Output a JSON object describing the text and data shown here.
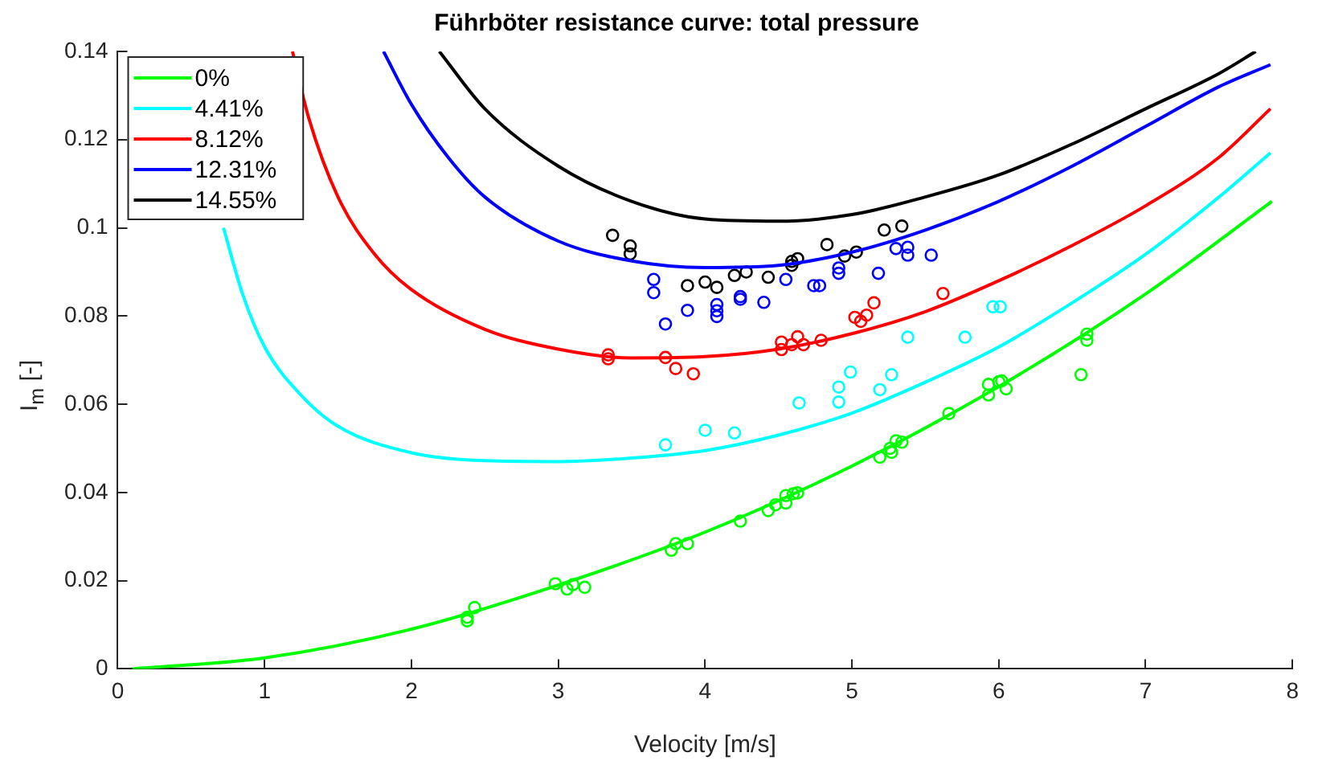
{
  "chart_data": {
    "type": "scatter",
    "title": "Führböter resistance curve: total pressure",
    "xlabel": "Velocity [m/s]",
    "ylabel": "I$_{m}$ [-]",
    "xlim": [
      0,
      8
    ],
    "xticks": [
      0,
      1,
      2,
      3,
      4,
      5,
      6,
      7,
      8
    ],
    "ylim": [
      0,
      0.14
    ],
    "yticks": [
      0,
      0.02,
      0.04,
      0.06,
      0.08,
      {
        "value": 0.1,
        "label": "0.1"
      },
      0.12,
      0.14
    ],
    "grid": false,
    "legend": "top left",
    "series": [
      {
        "name": "0%",
        "type": "line",
        "color": "#00ff00",
        "line_style": "solid",
        "marker": "none",
        "x": [
          0.1,
          1,
          2,
          3,
          4,
          5,
          6,
          7,
          7.86
        ],
        "values": [
          0,
          0.0025,
          0.009,
          0.019,
          0.031,
          0.046,
          0.064,
          0.085,
          0.106
        ]
      },
      {
        "name": "4.41%",
        "type": "line",
        "color": "#00ffff",
        "line_style": "solid",
        "marker": "none",
        "x": [
          0.72,
          0.85,
          1,
          1.25,
          1.5,
          2,
          2.5,
          3,
          3.5,
          4,
          4.5,
          5,
          5.5,
          6,
          6.5,
          7,
          7.5,
          7.85
        ],
        "values": [
          0.1,
          0.085,
          0.073,
          0.062,
          0.055,
          0.049,
          0.0472,
          0.047,
          0.0478,
          0.0495,
          0.053,
          0.058,
          0.065,
          0.073,
          0.083,
          0.094,
          0.107,
          0.117
        ]
      },
      {
        "name": "8.12%",
        "type": "line",
        "color": "#ff0000",
        "line_style": "solid",
        "marker": "none",
        "x": [
          1.19,
          1.3,
          1.5,
          1.75,
          2,
          2.5,
          3,
          3.5,
          4,
          4.5,
          5,
          5.5,
          6,
          6.5,
          7,
          7.5,
          7.85
        ],
        "values": [
          0.14,
          0.125,
          0.107,
          0.094,
          0.086,
          0.077,
          0.0725,
          0.0705,
          0.0708,
          0.0725,
          0.076,
          0.081,
          0.088,
          0.096,
          0.105,
          0.116,
          0.127
        ]
      },
      {
        "name": "12.31%",
        "type": "line",
        "color": "#0000ff",
        "line_style": "solid",
        "marker": "none",
        "x": [
          1.81,
          2,
          2.25,
          2.5,
          3,
          3.5,
          4,
          4.5,
          5,
          5.5,
          6,
          6.5,
          7,
          7.5,
          7.85
        ],
        "values": [
          0.14,
          0.128,
          0.116,
          0.107,
          0.097,
          0.0925,
          0.091,
          0.0915,
          0.0945,
          0.0995,
          0.106,
          0.114,
          0.123,
          0.132,
          0.137
        ]
      },
      {
        "name": "14.55%",
        "type": "line",
        "color": "#000000",
        "line_style": "solid",
        "marker": "none",
        "x": [
          2.19,
          2.5,
          3,
          3.5,
          4,
          4.5,
          5,
          5.5,
          6,
          6.5,
          7,
          7.5,
          7.75
        ],
        "values": [
          0.14,
          0.127,
          0.114,
          0.106,
          0.102,
          0.1015,
          0.103,
          0.107,
          0.112,
          0.119,
          0.127,
          0.135,
          0.14
        ]
      },
      {
        "type": "scatter",
        "color": "#00ff00",
        "marker": "circle",
        "x": [
          2.38,
          2.38,
          2.43,
          2.98,
          3.06,
          3.1,
          3.18,
          3.77,
          3.8,
          3.88,
          4.24,
          4.43,
          4.48,
          4.55,
          4.55,
          4.6,
          4.63,
          5.19,
          5.26,
          5.27,
          5.3,
          5.34,
          5.66,
          5.93,
          5.93,
          6.0,
          6.02,
          6.05,
          6.56,
          6.6,
          6.6
        ],
        "values": [
          0.0117,
          0.0109,
          0.0139,
          0.0193,
          0.0181,
          0.0191,
          0.0185,
          0.0269,
          0.0284,
          0.0284,
          0.0335,
          0.0359,
          0.0372,
          0.0376,
          0.0393,
          0.0397,
          0.0399,
          0.048,
          0.05,
          0.0491,
          0.0517,
          0.0514,
          0.0579,
          0.0645,
          0.0621,
          0.0651,
          0.0653,
          0.0635,
          0.0667,
          0.0759,
          0.0745
        ]
      },
      {
        "type": "scatter",
        "color": "#00ffff",
        "marker": "circle",
        "x": [
          3.73,
          4.0,
          4.2,
          4.64,
          4.91,
          4.91,
          4.99,
          5.19,
          5.27,
          5.38,
          5.77,
          5.96,
          6.01
        ],
        "values": [
          0.0508,
          0.0541,
          0.0535,
          0.0603,
          0.0639,
          0.0605,
          0.0673,
          0.0633,
          0.0667,
          0.0752,
          0.0752,
          0.0821,
          0.0821
        ]
      },
      {
        "type": "scatter",
        "color": "#ff0000",
        "marker": "circle",
        "x": [
          3.34,
          3.34,
          3.73,
          3.8,
          3.92,
          4.52,
          4.52,
          4.59,
          4.63,
          4.67,
          4.79,
          5.02,
          5.06,
          5.1,
          5.15,
          5.62
        ],
        "values": [
          0.0712,
          0.0703,
          0.0706,
          0.0681,
          0.0669,
          0.0741,
          0.0724,
          0.0735,
          0.0753,
          0.0735,
          0.0745,
          0.0797,
          0.0788,
          0.0802,
          0.083,
          0.0851
        ]
      },
      {
        "type": "scatter",
        "color": "#0000ff",
        "marker": "circle",
        "x": [
          3.65,
          3.65,
          3.73,
          3.88,
          4.08,
          4.08,
          4.08,
          4.24,
          4.24,
          4.4,
          4.55,
          4.74,
          4.78,
          4.91,
          4.91,
          5.18,
          5.3,
          5.38,
          5.38,
          5.54
        ],
        "values": [
          0.0883,
          0.0853,
          0.0782,
          0.0813,
          0.0826,
          0.0812,
          0.0799,
          0.0844,
          0.0838,
          0.0831,
          0.0883,
          0.0869,
          0.0869,
          0.0909,
          0.0897,
          0.0897,
          0.0953,
          0.0956,
          0.0938,
          0.0938
        ]
      },
      {
        "type": "scatter",
        "color": "#000000",
        "marker": "circle",
        "x": [
          3.37,
          3.49,
          3.49,
          3.88,
          4.0,
          4.08,
          4.2,
          4.28,
          4.43,
          4.59,
          4.59,
          4.63,
          4.83,
          4.95,
          5.03,
          5.22,
          5.34
        ],
        "values": [
          0.0983,
          0.0959,
          0.0941,
          0.0869,
          0.0877,
          0.0865,
          0.0892,
          0.09,
          0.0888,
          0.0924,
          0.0915,
          0.093,
          0.0962,
          0.0936,
          0.0945,
          0.0995,
          0.1004
        ]
      }
    ]
  }
}
